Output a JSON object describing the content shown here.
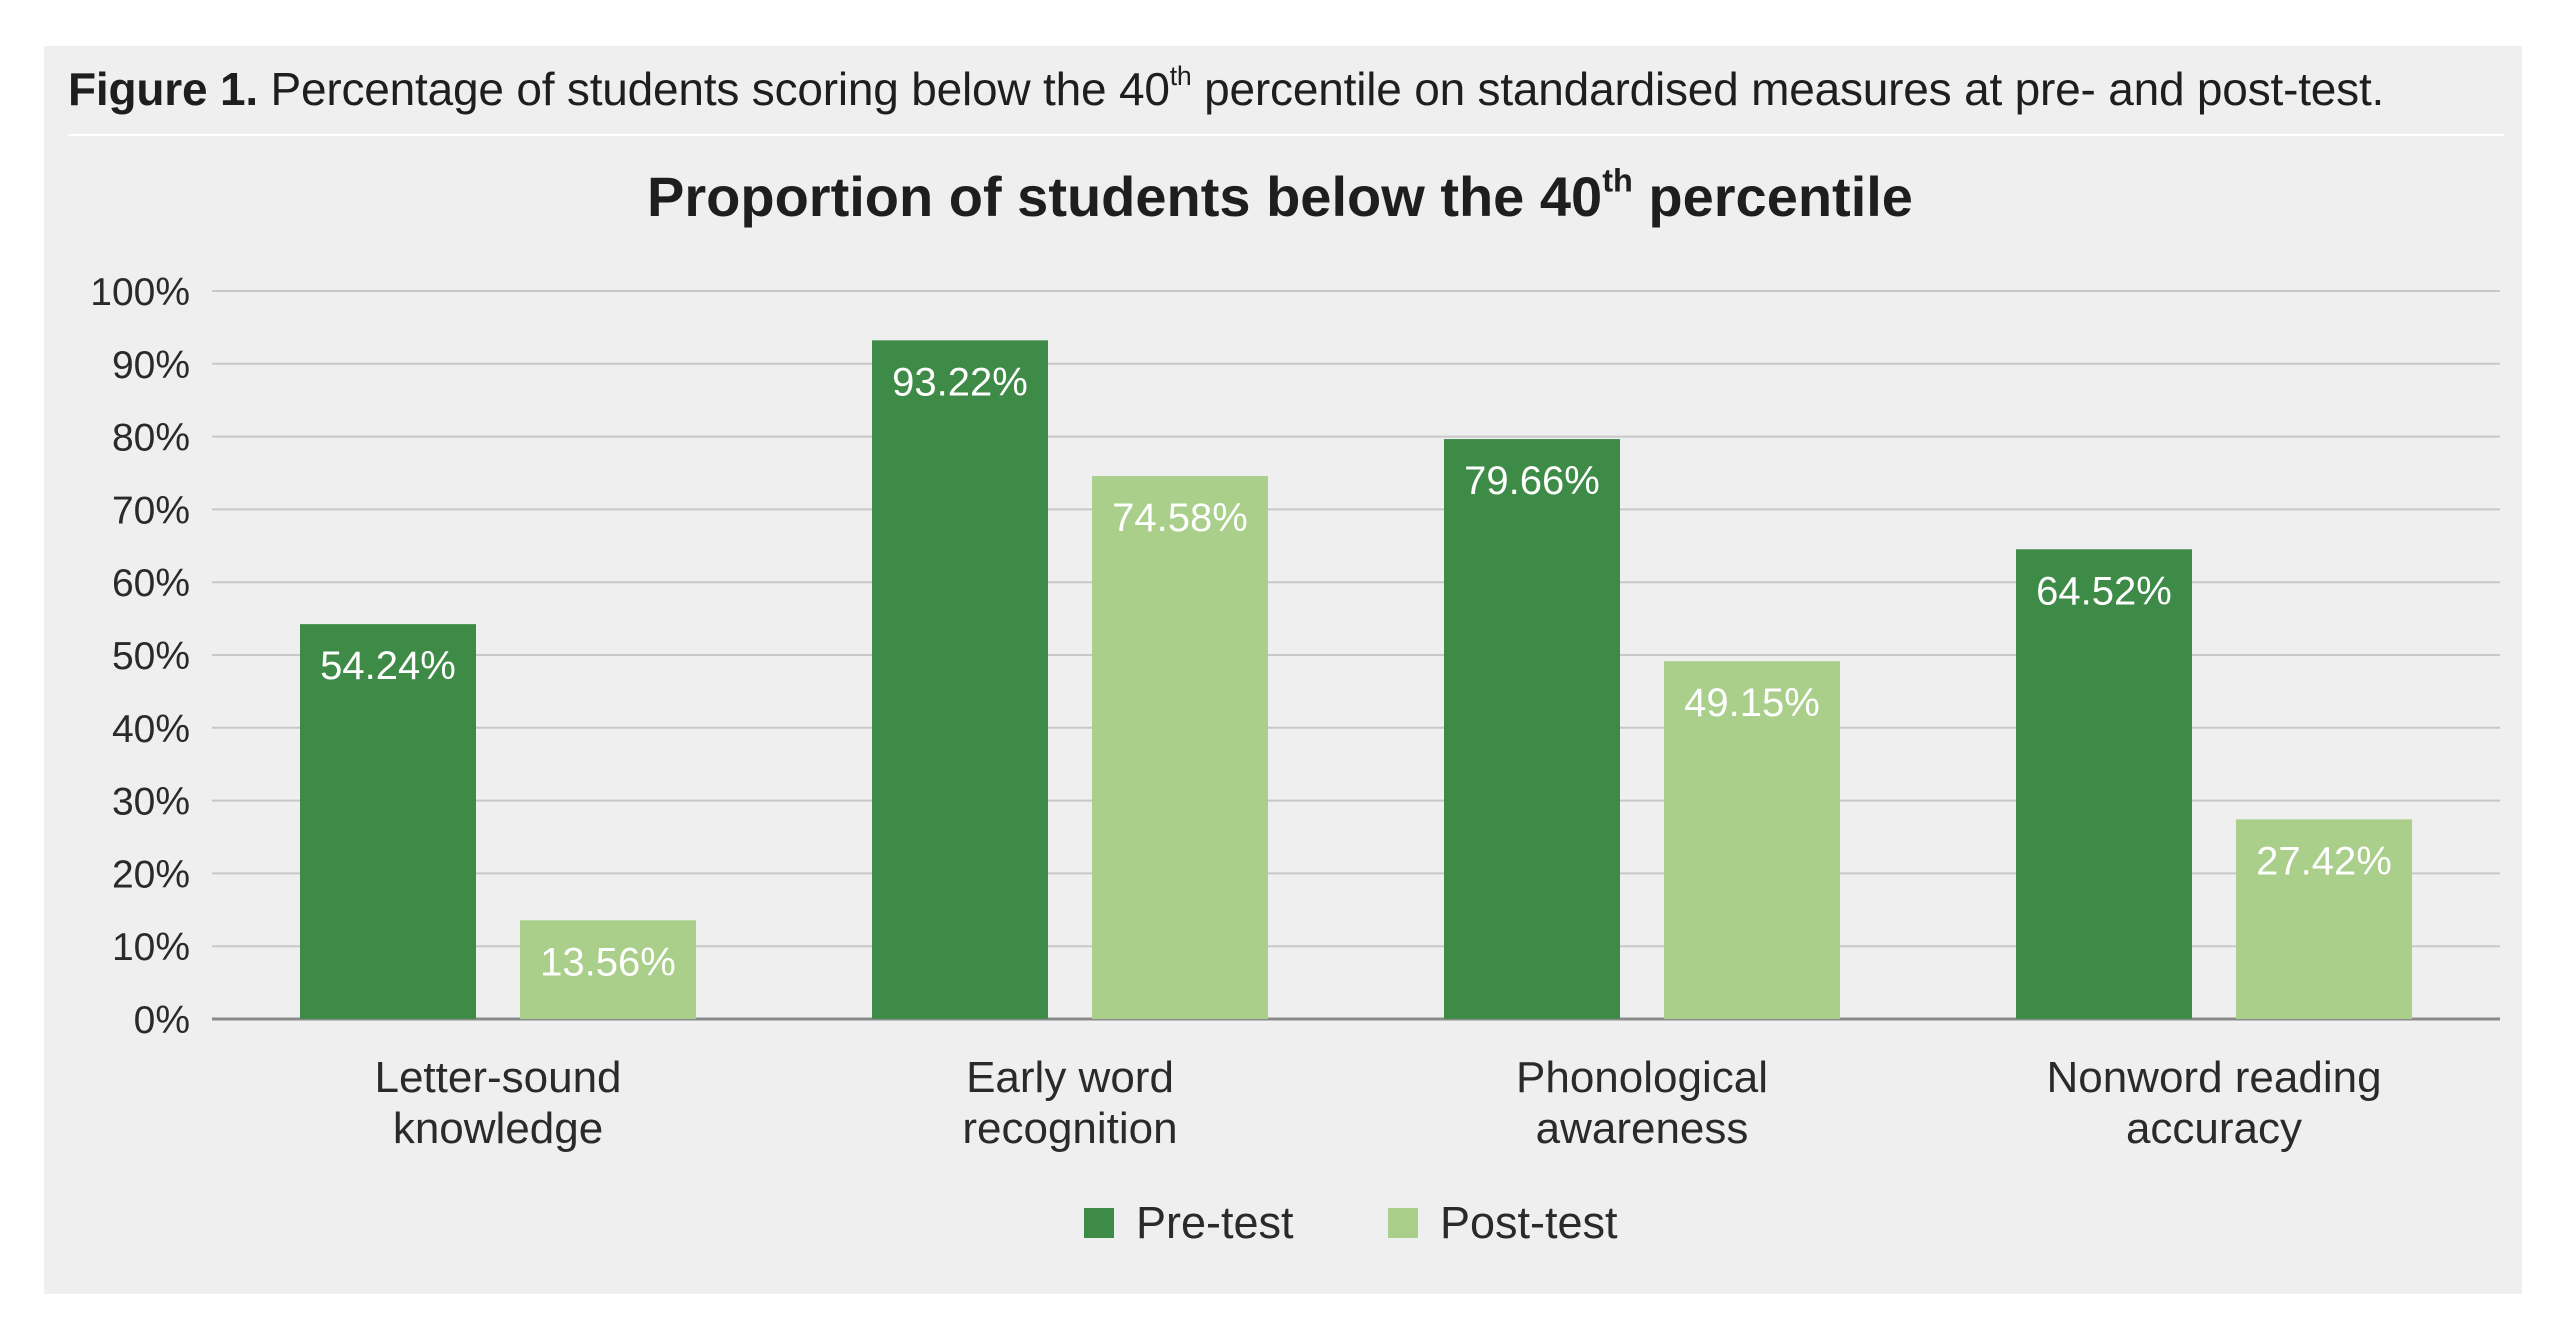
{
  "caption": {
    "figure_label": "Figure 1.",
    "text_before": "Percentage of students scoring below the 40",
    "sup": "th",
    "text_after": " percentile on standardised measures at pre- and post-test."
  },
  "chart_data": {
    "type": "bar",
    "title": "Proportion of students below the 40th percentile",
    "title_parts": {
      "before": "Proportion of students below the 40",
      "sup": "th",
      "after": " percentile"
    },
    "categories": [
      [
        "Letter-sound",
        "knowledge"
      ],
      [
        "Early word",
        "recognition"
      ],
      [
        "Phonological",
        "awareness"
      ],
      [
        "Nonword reading",
        "accuracy"
      ]
    ],
    "series": [
      {
        "name": "Pre-test",
        "color": "#3e8a47",
        "values": [
          54.24,
          93.22,
          79.66,
          64.52
        ],
        "labels": [
          "54.24%",
          "93.22%",
          "79.66%",
          "64.52%"
        ]
      },
      {
        "name": "Post-test",
        "color": "#a9cf8a",
        "values": [
          13.56,
          74.58,
          49.15,
          27.42
        ],
        "labels": [
          "13.56%",
          "74.58%",
          "49.15%",
          "27.42%"
        ]
      }
    ],
    "ylim": [
      0,
      100
    ],
    "yticks": [
      "0%",
      "10%",
      "20%",
      "30%",
      "40%",
      "50%",
      "60%",
      "70%",
      "80%",
      "90%",
      "100%"
    ],
    "grid": true,
    "legend": "bottom-center",
    "gridline_color": "#c8c8c8",
    "axis_color": "#8a8a8a"
  }
}
